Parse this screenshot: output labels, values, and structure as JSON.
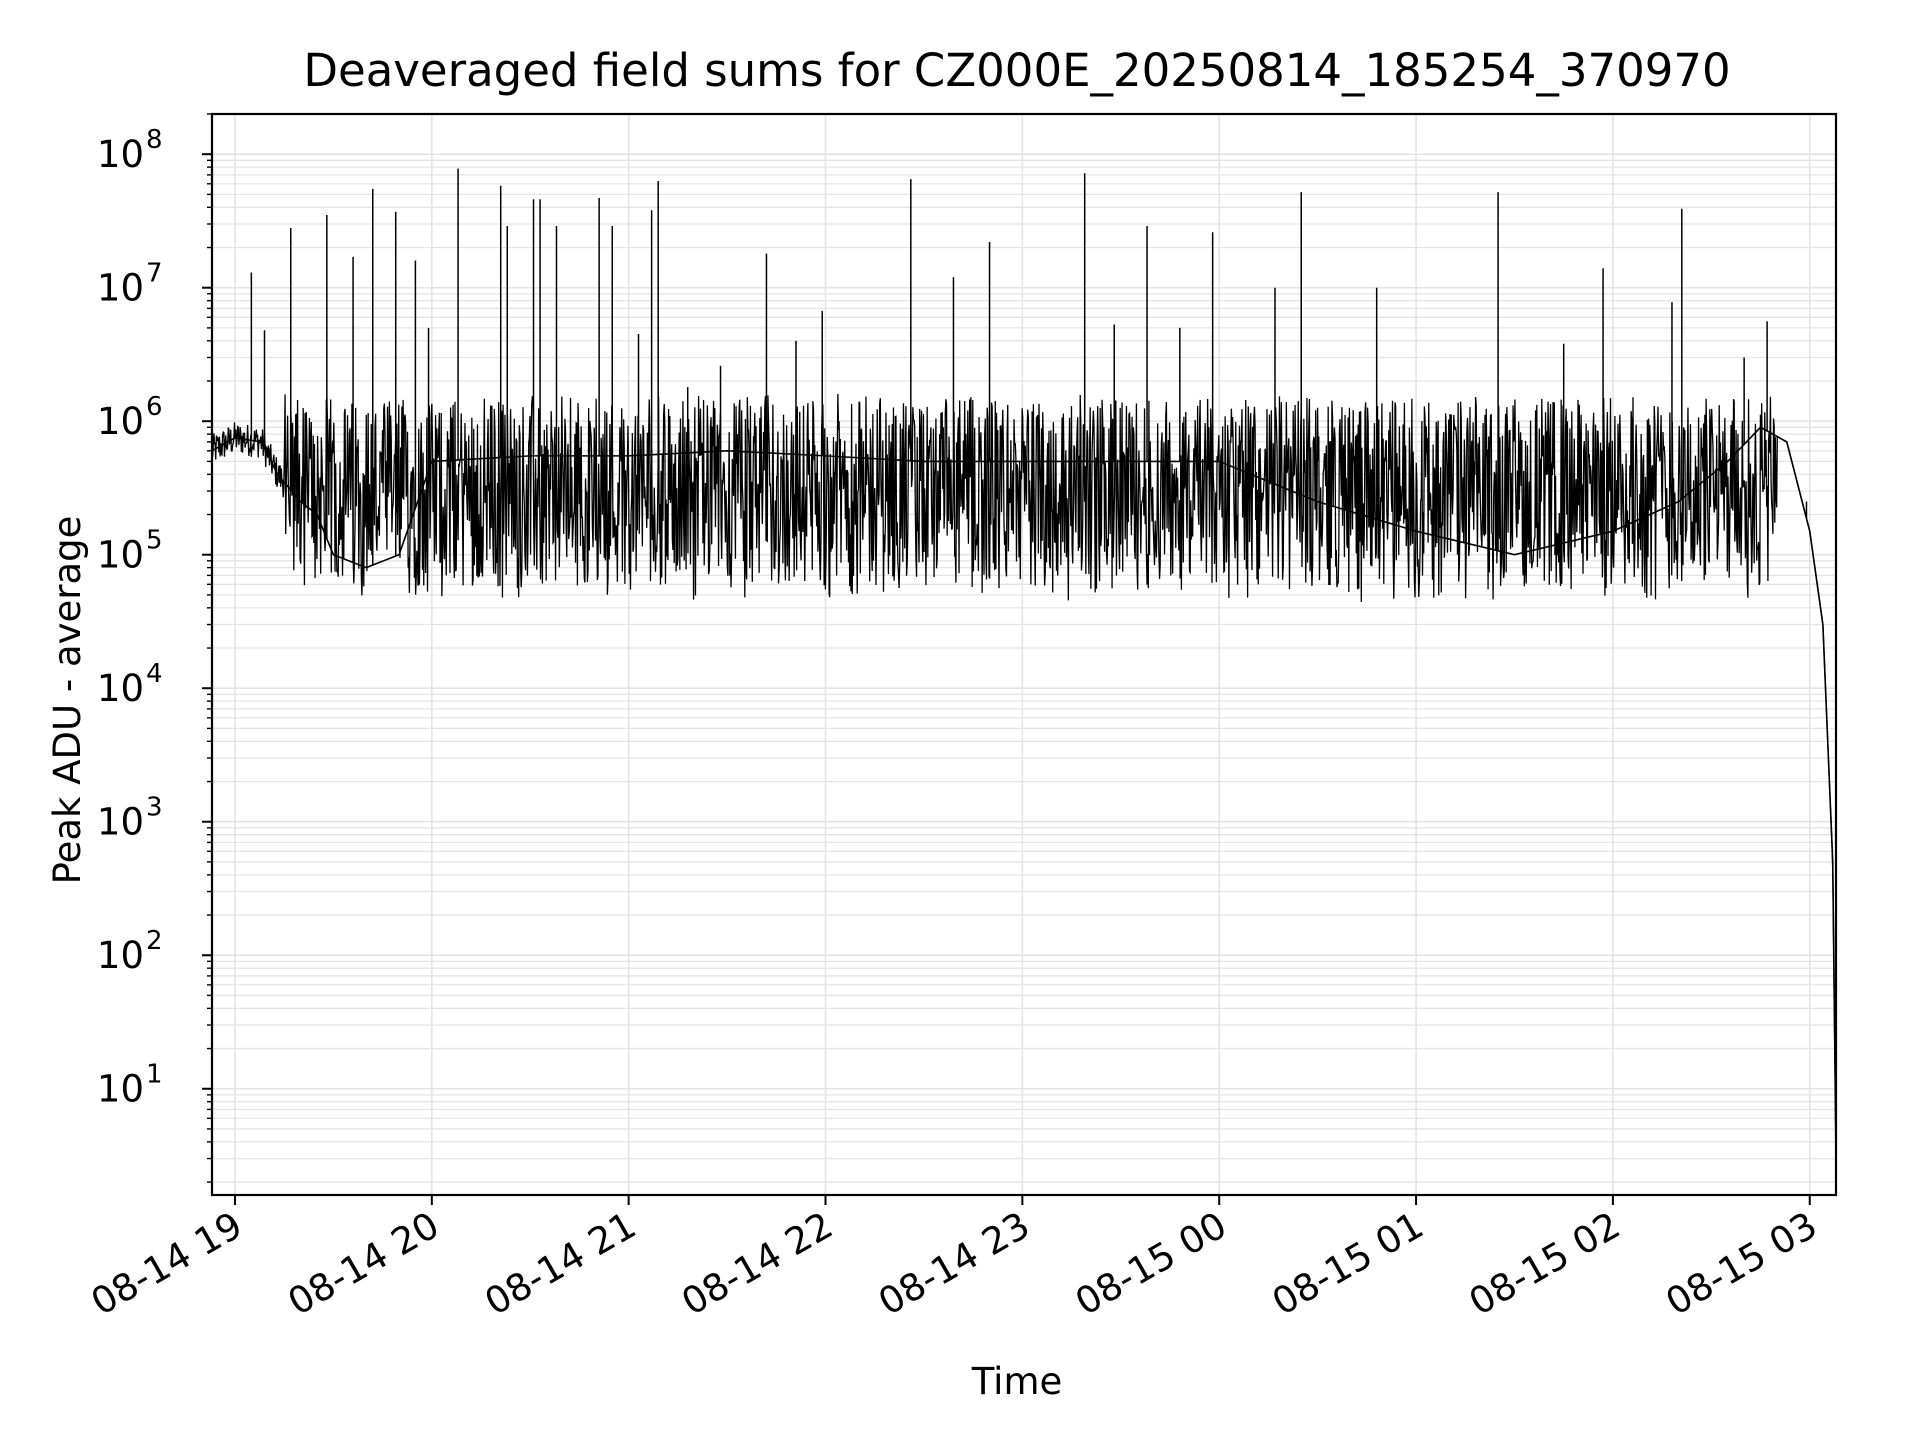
{
  "chart_data": {
    "type": "line",
    "title": "Deaveraged field sums for CZ000E_20250814_185254_370970",
    "xlabel": "Time",
    "ylabel": "Peak ADU - average",
    "x_scale": "time",
    "y_scale": "log",
    "xlim": [
      "2025-08-14 18:53",
      "2025-08-15 03:08"
    ],
    "ylim": [
      1.6,
      200000000.0
    ],
    "grid": true,
    "legend": "none",
    "line_color": "#000000",
    "grid_color": "#e4e4e4",
    "x_ticks": [
      "2025-08-14 19:00",
      "2025-08-14 20:00",
      "2025-08-14 21:00",
      "2025-08-14 22:00",
      "2025-08-14 23:00",
      "2025-08-15 00:00",
      "2025-08-15 01:00",
      "2025-08-15 02:00",
      "2025-08-15 03:00"
    ],
    "x_tick_labels": [
      "08-14 19",
      "08-14 20",
      "08-14 21",
      "08-14 22",
      "08-14 23",
      "08-15 00",
      "08-15 01",
      "08-15 02",
      "08-15 03"
    ],
    "y_tick_exponents": [
      1,
      2,
      3,
      4,
      5,
      6,
      7,
      8
    ],
    "y_tick_base": "10",
    "series": [
      {
        "x": [
          "2025-08-14 18:53",
          "2025-08-14 19:00",
          "2025-08-14 19:08",
          "2025-08-14 19:13",
          "2025-08-14 19:20",
          "2025-08-14 19:25",
          "2025-08-14 19:30",
          "2025-08-14 19:40",
          "2025-08-14 19:50",
          "2025-08-14 20:00",
          "2025-08-14 20:30",
          "2025-08-14 21:00",
          "2025-08-14 21:30",
          "2025-08-14 22:00",
          "2025-08-14 22:30",
          "2025-08-14 23:00",
          "2025-08-14 23:30",
          "2025-08-15 00:00",
          "2025-08-15 00:30",
          "2025-08-15 01:00",
          "2025-08-15 01:30",
          "2025-08-15 02:00",
          "2025-08-15 02:20",
          "2025-08-15 02:35",
          "2025-08-15 02:45",
          "2025-08-15 02:53",
          "2025-08-15 03:00",
          "2025-08-15 03:04",
          "2025-08-15 03:07",
          "2025-08-15 03:08"
        ],
        "y": [
          600000.0,
          750000.0,
          700000.0,
          400000.0,
          250000.0,
          200000.0,
          100000.0,
          80000.0,
          100000.0,
          500000.0,
          550000.0,
          550000.0,
          600000.0,
          550000.0,
          500000.0,
          500000.0,
          500000.0,
          500000.0,
          250000.0,
          150000.0,
          100000.0,
          150000.0,
          250000.0,
          500000.0,
          900000.0,
          700000.0,
          150000.0,
          30000.0,
          500.0,
          3
        ]
      }
    ],
    "spikes": {
      "x": [
        "2025-08-14 19:05",
        "2025-08-14 19:09",
        "2025-08-14 19:17",
        "2025-08-14 19:28",
        "2025-08-14 19:36",
        "2025-08-14 19:42",
        "2025-08-14 19:49",
        "2025-08-14 19:55",
        "2025-08-14 19:59",
        "2025-08-14 20:08",
        "2025-08-14 20:21",
        "2025-08-14 20:23",
        "2025-08-14 20:31",
        "2025-08-14 20:33",
        "2025-08-14 20:38",
        "2025-08-14 20:51",
        "2025-08-14 20:55",
        "2025-08-14 21:03",
        "2025-08-14 21:07",
        "2025-08-14 21:09",
        "2025-08-14 21:18",
        "2025-08-14 21:28",
        "2025-08-14 21:42",
        "2025-08-14 21:51",
        "2025-08-14 21:59",
        "2025-08-14 22:26",
        "2025-08-14 22:39",
        "2025-08-14 22:50",
        "2025-08-14 23:19",
        "2025-08-14 23:28",
        "2025-08-14 23:38",
        "2025-08-14 23:48",
        "2025-08-14 23:58",
        "2025-08-15 00:17",
        "2025-08-15 00:25",
        "2025-08-15 00:48",
        "2025-08-15 01:25",
        "2025-08-15 01:45",
        "2025-08-15 01:57",
        "2025-08-15 02:18",
        "2025-08-15 02:21",
        "2025-08-15 02:28",
        "2025-08-15 02:40",
        "2025-08-15 02:47",
        "2025-08-15 02:59"
      ],
      "y": [
        13000000.0,
        4800000.0,
        28000000.0,
        35000000.0,
        17000000.0,
        55000000.0,
        37000000.0,
        16000000.0,
        5000000.0,
        78000000.0,
        58000000.0,
        29000000.0,
        46000000.0,
        46000000.0,
        29000000.0,
        47000000.0,
        29000000.0,
        4500000.0,
        38000000.0,
        63000000.0,
        1800000.0,
        2600000.0,
        18000000.0,
        4000000.0,
        6700000.0,
        65000000.0,
        12000000.0,
        22000000.0,
        72000000.0,
        5300000.0,
        29000000.0,
        5000000.0,
        26000000.0,
        10000000.0,
        52000000.0,
        10000000.0,
        52000000.0,
        3800000.0,
        14000000.0,
        7800000.0,
        39000000.0,
        500000.0,
        3000000.0,
        5600000.0,
        250000.0
      ]
    },
    "noise_band": {
      "low": 50000.0,
      "high": 1500000.0,
      "start": "2025-08-14 19:15",
      "end": "2025-08-15 02:50"
    }
  }
}
